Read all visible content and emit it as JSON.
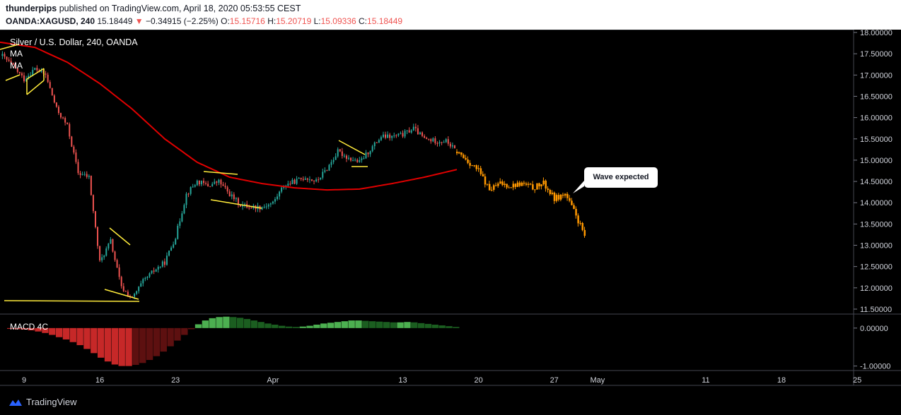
{
  "header": {
    "author": "thunderpips",
    "published_text": "published on TradingView.com, April 18, 2020 05:53:55 CEST",
    "symbol": "OANDA:XAGUSD, 240",
    "last": "15.18449",
    "change_arrow": "▼",
    "change": "−0.34915 (−2.25%)",
    "o_label": "O:",
    "o_value": "15.15716",
    "h_label": "H:",
    "h_value": "15.20719",
    "l_label": "L:",
    "l_value": "15.09336",
    "c_label": "C:",
    "c_value": "15.18449"
  },
  "legend": {
    "series_title": "Silver / U.S. Dollar, 240, OANDA",
    "ma1": "MA",
    "ma2": "MA",
    "macd_title": "MACD 4C"
  },
  "callout_text": "Wave expected",
  "branding": {
    "label": "TradingView",
    "icon": "tradingview-logo-icon"
  },
  "colors": {
    "bull": "#26a69a",
    "bear": "#ef5350",
    "ma": "#e10000",
    "pattern": "#ffeb3b",
    "projection": "#ff9800",
    "macd_pos_strong": "#4caf50",
    "macd_pos_weak": "#1b5e20",
    "macd_neg_strong": "#c62828",
    "macd_neg_weak": "#5d1010"
  },
  "chart_data": [
    {
      "type": "candlestick",
      "title": "Silver / U.S. Dollar, 240, OANDA",
      "x_tick_labels": [
        "9",
        "16",
        "23",
        "Apr",
        "13",
        "20",
        "27",
        "May",
        "11",
        "18",
        "25"
      ],
      "y_tick_labels": [
        "18.00000",
        "17.50000",
        "17.00000",
        "16.50000",
        "16.00000",
        "15.50000",
        "15.00000",
        "14.50000",
        "14.00000",
        "13.50000",
        "13.00000",
        "12.50000",
        "12.00000",
        "11.50000"
      ],
      "ylim": [
        11.4,
        18.05
      ],
      "price_path": [
        [
          "Mar 7",
          17.45
        ],
        [
          "Mar 8",
          17.2
        ],
        [
          "Mar 9",
          16.9
        ],
        [
          "Mar 10",
          17.15
        ],
        [
          "Mar 11",
          17.0
        ],
        [
          "Mar 12",
          16.2
        ],
        [
          "Mar 13",
          15.8
        ],
        [
          "Mar 14",
          14.7
        ],
        [
          "Mar 15",
          14.6
        ],
        [
          "Mar 16",
          12.6
        ],
        [
          "Mar 17",
          13.1
        ],
        [
          "Mar 18",
          12.0
        ],
        [
          "Mar 19",
          11.75
        ],
        [
          "Mar 20",
          12.15
        ],
        [
          "Mar 21",
          12.4
        ],
        [
          "Mar 22",
          12.6
        ],
        [
          "Mar 23",
          13.2
        ],
        [
          "Mar 24",
          14.2
        ],
        [
          "Mar 25",
          14.5
        ],
        [
          "Mar 26",
          14.4
        ],
        [
          "Mar 27",
          14.5
        ],
        [
          "Mar 28",
          14.2
        ],
        [
          "Mar 29",
          13.95
        ],
        [
          "Mar 30",
          13.9
        ],
        [
          "Mar 31",
          13.9
        ],
        [
          "Apr 1",
          14.0
        ],
        [
          "Apr 2",
          14.4
        ],
        [
          "Apr 3",
          14.5
        ],
        [
          "Apr 4",
          14.6
        ],
        [
          "Apr 5",
          14.5
        ],
        [
          "Apr 6",
          14.8
        ],
        [
          "Apr 7",
          15.2
        ],
        [
          "Apr 8",
          15.05
        ],
        [
          "Apr 9",
          14.95
        ],
        [
          "Apr 10",
          15.25
        ],
        [
          "Apr 11",
          15.55
        ],
        [
          "Apr 12",
          15.55
        ],
        [
          "Apr 13",
          15.6
        ],
        [
          "Apr 14",
          15.75
        ],
        [
          "Apr 15",
          15.5
        ],
        [
          "Apr 16",
          15.45
        ],
        [
          "Apr 17",
          15.45
        ],
        [
          "Apr 18",
          15.2
        ]
      ],
      "projection_path": [
        [
          "Apr 18",
          15.2
        ],
        [
          "Apr 20",
          14.75
        ],
        [
          "Apr 21",
          14.3
        ],
        [
          "Apr 22",
          14.45
        ],
        [
          "Apr 23",
          14.4
        ],
        [
          "Apr 24",
          14.45
        ],
        [
          "Apr 25",
          14.35
        ],
        [
          "Apr 26",
          14.45
        ],
        [
          "Apr 27",
          14.1
        ],
        [
          "Apr 28",
          14.2
        ],
        [
          "Apr 29",
          13.7
        ],
        [
          "Apr 30",
          13.1
        ]
      ],
      "moving_average": [
        [
          "Mar 6",
          17.8
        ],
        [
          "Mar 10",
          17.65
        ],
        [
          "Mar 13",
          17.3
        ],
        [
          "Mar 16",
          16.8
        ],
        [
          "Mar 19",
          16.2
        ],
        [
          "Mar 22",
          15.5
        ],
        [
          "Mar 25",
          14.95
        ],
        [
          "Mar 28",
          14.6
        ],
        [
          "Mar 31",
          14.45
        ],
        [
          "Apr 3",
          14.35
        ],
        [
          "Apr 6",
          14.3
        ],
        [
          "Apr 9",
          14.32
        ],
        [
          "Apr 12",
          14.45
        ],
        [
          "Apr 15",
          14.6
        ],
        [
          "Apr 18",
          14.78
        ]
      ]
    },
    {
      "type": "bar",
      "title": "MACD 4C",
      "y_tick_labels": [
        "0.00000",
        "-1.00000"
      ],
      "ylim": [
        -1.1,
        0.35
      ],
      "series": [
        {
          "values": [
            -0.02,
            -0.03,
            -0.04,
            -0.06,
            -0.09,
            -0.13,
            -0.18,
            -0.24,
            -0.3,
            -0.37,
            -0.45,
            -0.55,
            -0.66,
            -0.78,
            -0.88,
            -0.96,
            -1.0,
            -1.0,
            -0.97,
            -0.92,
            -0.84,
            -0.74,
            -0.62,
            -0.48,
            -0.33,
            -0.18,
            -0.03,
            0.1,
            0.2,
            0.26,
            0.29,
            0.3,
            0.29,
            0.27,
            0.24,
            0.2,
            0.16,
            0.12,
            0.09,
            0.06,
            0.04,
            0.03,
            0.04,
            0.06,
            0.09,
            0.12,
            0.14,
            0.16,
            0.18,
            0.2,
            0.2,
            0.19,
            0.18,
            0.17,
            0.16,
            0.15,
            0.15,
            0.16,
            0.15,
            0.13,
            0.11,
            0.09,
            0.07,
            0.05,
            0.03
          ]
        }
      ]
    }
  ]
}
